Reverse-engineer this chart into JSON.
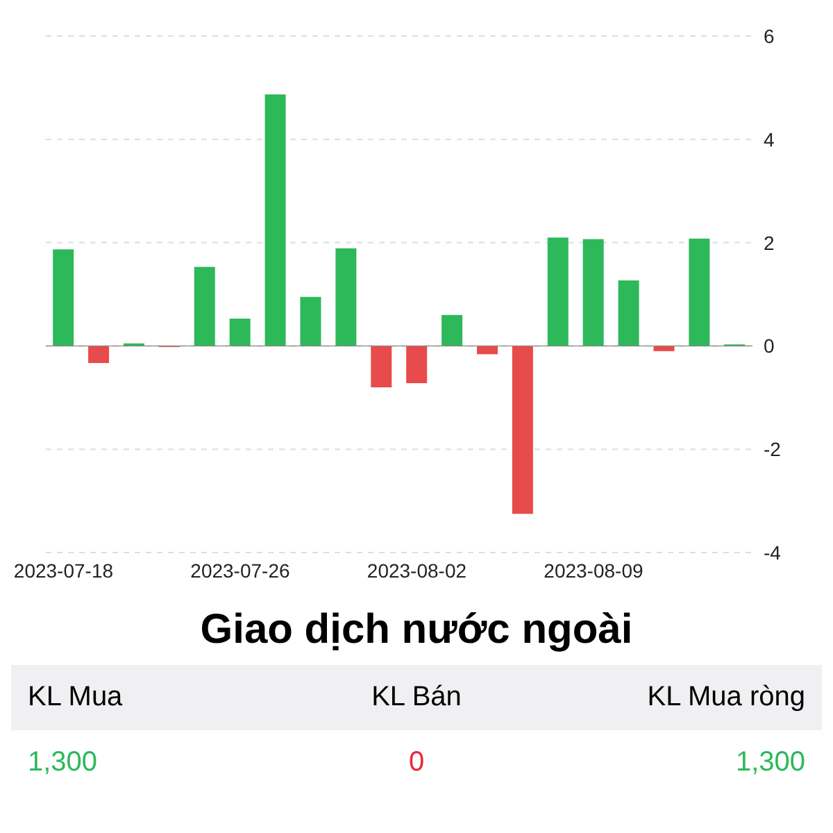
{
  "chart_data": {
    "type": "bar",
    "categories": [
      "2023-07-18",
      null,
      null,
      null,
      null,
      "2023-07-26",
      null,
      null,
      null,
      null,
      "2023-08-02",
      null,
      null,
      null,
      null,
      "2023-08-09",
      null,
      null,
      null,
      null
    ],
    "values": [
      1.87,
      -0.33,
      0.05,
      -0.02,
      1.53,
      0.53,
      4.87,
      0.95,
      1.89,
      -0.8,
      -0.72,
      0.6,
      -0.16,
      -3.25,
      2.1,
      2.07,
      1.27,
      -0.1,
      2.08,
      0.03
    ],
    "colors": [
      "#2db85a",
      "#e84b4b",
      "#2db85a",
      "#e84b4b",
      "#2db85a",
      "#2db85a",
      "#2db85a",
      "#2db85a",
      "#2db85a",
      "#e84b4b",
      "#e84b4b",
      "#2db85a",
      "#e84b4b",
      "#e84b4b",
      "#2db85a",
      "#2db85a",
      "#2db85a",
      "#e84b4b",
      "#2db85a",
      "#2db85a"
    ],
    "ylim": [
      -4,
      6
    ],
    "yticks": [
      -4,
      -2,
      0,
      2,
      4,
      6
    ],
    "grid": "y",
    "ref_lines": [
      {
        "axis": "y",
        "value": 0,
        "color": "#888888"
      }
    ],
    "annotations": [
      "Giao dịch nước ngoài",
      "KL Mua",
      "KL Bán",
      "KL Mua ròng",
      "1,300",
      "0",
      "1,300"
    ]
  }
}
